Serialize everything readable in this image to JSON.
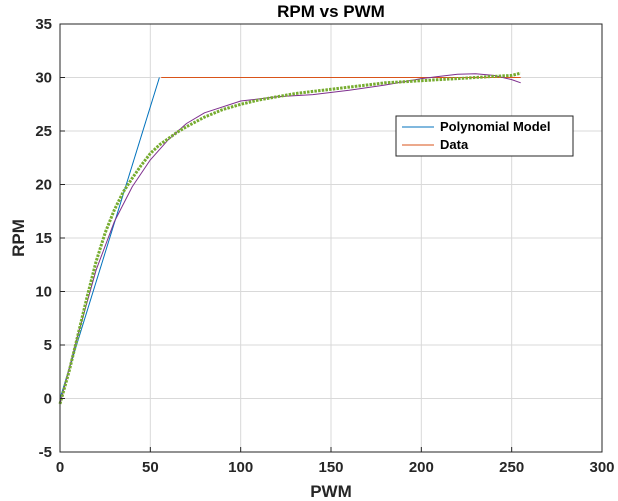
{
  "chart_data": {
    "type": "line",
    "title": "RPM vs PWM",
    "xlabel": "PWM",
    "ylabel": "RPM",
    "xlim": [
      0,
      300
    ],
    "ylim": [
      -5,
      35
    ],
    "xticks": [
      0,
      50,
      100,
      150,
      200,
      250,
      300
    ],
    "yticks": [
      -5,
      0,
      5,
      10,
      15,
      20,
      25,
      30,
      35
    ],
    "grid": true,
    "legend_position": "right",
    "legend": [
      {
        "label": "Polynomial Model",
        "color": "#0072BD"
      },
      {
        "label": "Data",
        "color": "#D95319"
      }
    ],
    "series": [
      {
        "name": "Polynomial Model",
        "color": "#0072BD",
        "x": [
          0,
          55
        ],
        "y": [
          0,
          30
        ]
      },
      {
        "name": "Data",
        "color": "#D95319",
        "x": [
          56,
          255
        ],
        "y": [
          30,
          30
        ]
      },
      {
        "color": "#7E2F8E",
        "x": [
          0,
          10,
          20,
          30,
          40,
          50,
          60,
          70,
          80,
          100,
          120,
          140,
          160,
          180,
          200,
          210,
          220,
          230,
          240,
          250,
          255
        ],
        "y": [
          -0.5,
          6,
          12,
          16.5,
          19.8,
          22.3,
          24.2,
          25.7,
          26.7,
          27.8,
          28.2,
          28.4,
          28.8,
          29.3,
          29.9,
          30.1,
          30.3,
          30.35,
          30.2,
          29.8,
          29.5
        ]
      },
      {
        "color": "#77AC30",
        "x": [
          0,
          5,
          10,
          15,
          20,
          25,
          30,
          35,
          40,
          45,
          50,
          55,
          60,
          65,
          70,
          80,
          90,
          100,
          110,
          120,
          130,
          140,
          150,
          160,
          170,
          180,
          190,
          200,
          210,
          220,
          230,
          240,
          250,
          255
        ],
        "y": [
          -0.5,
          2.5,
          6,
          9.5,
          12.8,
          15.5,
          17.6,
          19.3,
          20.6,
          21.8,
          22.9,
          23.7,
          24.3,
          24.9,
          25.4,
          26.3,
          27,
          27.5,
          27.9,
          28.2,
          28.5,
          28.7,
          28.9,
          29.1,
          29.3,
          29.5,
          29.6,
          29.7,
          29.8,
          29.9,
          30,
          30.1,
          30.2,
          30.4
        ]
      }
    ]
  }
}
